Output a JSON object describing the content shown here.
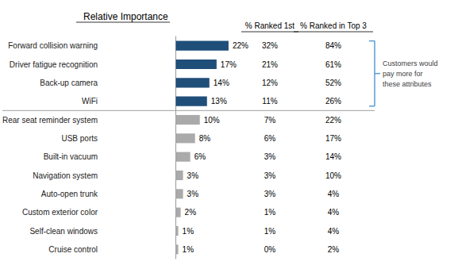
{
  "chart_data": {
    "type": "bar",
    "orientation": "horizontal",
    "title": "Relative Importance",
    "categories": [
      "Forward collision warning",
      "Driver fatigue recognition",
      "Back-up camera",
      "WiFi",
      "Rear seat reminder system",
      "USB ports",
      "Built-in vacuum",
      "Navigation system",
      "Auto-open trunk",
      "Custom exterior color",
      "Self-clean windows",
      "Cruise control"
    ],
    "values": [
      22,
      17,
      14,
      13,
      10,
      8,
      6,
      3,
      3,
      2,
      1,
      1
    ],
    "value_labels": [
      "22%",
      "17%",
      "14%",
      "13%",
      "10%",
      "8%",
      "6%",
      "3%",
      "3%",
      "2%",
      "1%",
      "1%"
    ],
    "data_labels": true,
    "colors": [
      "#1f4e79",
      "#1f4e79",
      "#1f4e79",
      "#1f4e79",
      "#aaaaaa",
      "#aaaaaa",
      "#aaaaaa",
      "#aaaaaa",
      "#aaaaaa",
      "#aaaaaa",
      "#aaaaaa",
      "#aaaaaa"
    ],
    "xlim": [
      -30,
      26
    ],
    "tick_labels": "y",
    "grid": false,
    "columns": [
      {
        "header": "% Ranked 1st",
        "values": [
          32,
          21,
          12,
          11,
          7,
          6,
          3,
          3,
          3,
          1,
          1,
          0
        ],
        "value_labels": [
          "32%",
          "21%",
          "12%",
          "11%",
          "7%",
          "6%",
          "3%",
          "3%",
          "3%",
          "1%",
          "1%",
          "0%"
        ]
      },
      {
        "header": "% Ranked in Top 3",
        "values": [
          84,
          61,
          52,
          26,
          22,
          17,
          14,
          10,
          4,
          4,
          4,
          2
        ],
        "value_labels": [
          "84%",
          "61%",
          "52%",
          "26%",
          "22%",
          "17%",
          "14%",
          "10%",
          "4%",
          "4%",
          "4%",
          "2%"
        ]
      }
    ],
    "annotations": [
      {
        "text": "Customers would\npay more for\nthese attributes",
        "applies_to": [
          "Forward collision warning",
          "Driver fatigue recognition",
          "Back-up camera",
          "WiFi"
        ],
        "color": "#5b9bd5"
      }
    ]
  }
}
